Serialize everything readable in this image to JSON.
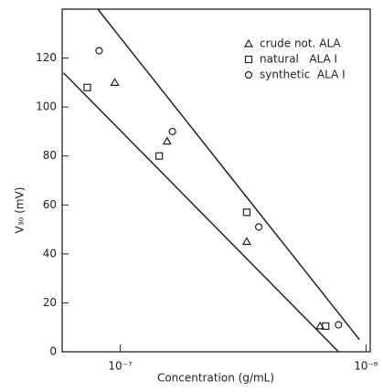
{
  "chart_data": {
    "type": "scatter",
    "xlabel": "Concentration (g/mL)",
    "ylabel": "V₃₀ (mV)",
    "xscale": "log",
    "xlim": [
      5.8e-08,
      1.04e-06
    ],
    "ylim": [
      0,
      140
    ],
    "xticks": [
      {
        "value": 1e-07,
        "label": "10⁻⁷"
      },
      {
        "value": 1e-06,
        "label": "10⁻⁶"
      }
    ],
    "yticks": [
      0,
      20,
      40,
      60,
      80,
      100,
      120
    ],
    "legend": "upper right",
    "series": [
      {
        "name": "crude not. ALA",
        "marker": "triangle",
        "color": "#222222",
        "x": [
          9.5e-08,
          1.55e-07,
          3.27e-07,
          6.5e-07
        ],
        "values": [
          110,
          86,
          45,
          10.5
        ]
      },
      {
        "name": "natural   ALA I",
        "marker": "square",
        "color": "#222222",
        "x": [
          7.34e-08,
          1.44e-07,
          3.27e-07,
          6.85e-07
        ],
        "values": [
          108,
          80,
          57,
          10.5
        ]
      },
      {
        "name": "synthetic  ALA I",
        "marker": "circle",
        "color": "#222222",
        "x": [
          8.2e-08,
          1.63e-07,
          3.66e-07,
          7.73e-07
        ],
        "values": [
          123,
          90,
          51,
          11
        ]
      }
    ],
    "lines": [
      {
        "x": [
          8.1e-08,
          9.4e-07
        ],
        "values": [
          140,
          5
        ]
      },
      {
        "x": [
          5.87e-08,
          7.73e-07
        ],
        "values": [
          114,
          0
        ]
      }
    ]
  }
}
